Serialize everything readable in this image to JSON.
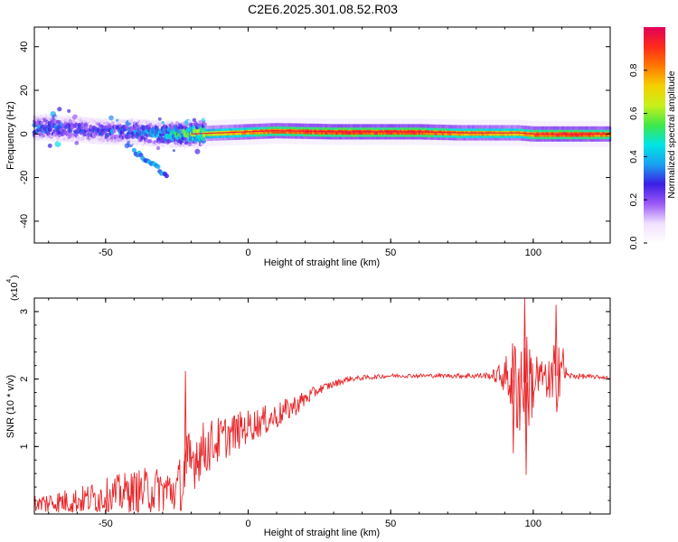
{
  "title": "C2E6.2025.301.08.52.R03",
  "colors": {
    "line": "#e8262a",
    "background": "#ffffff",
    "colormap": [
      "#ffffff",
      "#f0e0ff",
      "#9b59f5",
      "#3b1ee6",
      "#1aa0f0",
      "#00e5e5",
      "#3ee84a",
      "#c8f01a",
      "#f5d000",
      "#ff7a00",
      "#ff2a1a",
      "#e0005a"
    ]
  },
  "chart_data": [
    {
      "type": "heatmap",
      "title": "C2E6.2025.301.08.52.R03",
      "xlabel": "Height of straight line (km)",
      "ylabel": "Frequency (Hz)",
      "xlim": [
        -75,
        127
      ],
      "ylim": [
        -50,
        49
      ],
      "xticks": [
        -50,
        0,
        50,
        100
      ],
      "yticks": [
        40,
        20,
        0,
        -20,
        -40
      ],
      "colorbar": {
        "label": "Normalized spectral amplitude",
        "range": [
          0.0,
          1.0
        ],
        "ticks": [
          0.0,
          0.2,
          0.4,
          0.6,
          0.8
        ]
      },
      "ridge": {
        "description_points": [
          {
            "x": -72,
            "freq": 3,
            "amp": 0.35
          },
          {
            "x": -60,
            "freq": 2,
            "amp": 0.3
          },
          {
            "x": -50,
            "freq": 1,
            "amp": 0.3
          },
          {
            "x": -40,
            "freq": 1,
            "amp": 0.35
          },
          {
            "x": -30,
            "freq": 0,
            "amp": 0.4
          },
          {
            "x": -20,
            "freq": 0,
            "amp": 0.6
          },
          {
            "x": -10,
            "freq": 0.5,
            "amp": 0.75
          },
          {
            "x": 0,
            "freq": 1,
            "amp": 0.85
          },
          {
            "x": 10,
            "freq": 1.5,
            "amp": 0.9
          },
          {
            "x": 30,
            "freq": 1,
            "amp": 0.95
          },
          {
            "x": 60,
            "freq": 1,
            "amp": 0.95
          },
          {
            "x": 75,
            "freq": 0.5,
            "amp": 0.85
          },
          {
            "x": 95,
            "freq": 0.5,
            "amp": 0.8
          },
          {
            "x": 100,
            "freq": 0,
            "amp": 0.9
          },
          {
            "x": 110,
            "freq": 0,
            "amp": 0.95
          },
          {
            "x": 127,
            "freq": 0,
            "amp": 0.9
          }
        ],
        "secondary_branch": [
          {
            "x": -40,
            "freq": -8,
            "amp": 0.3
          },
          {
            "x": -33,
            "freq": -14,
            "amp": 0.35
          },
          {
            "x": -28,
            "freq": -20,
            "amp": 0.3
          }
        ]
      }
    },
    {
      "type": "line",
      "xlabel": "Height of straight line (km)",
      "ylabel": "SNR (10 * v/v)",
      "yscale_label": "(x10",
      "yscale_exp": "4",
      "xlim": [
        -75,
        127
      ],
      "ylim": [
        0,
        3.2
      ],
      "xticks": [
        -50,
        0,
        50,
        100
      ],
      "yticks": [
        1,
        2,
        3
      ],
      "series": [
        {
          "name": "SNR",
          "envelope": [
            {
              "x": -75,
              "mean": 0.15,
              "amp": 0.15
            },
            {
              "x": -60,
              "mean": 0.2,
              "amp": 0.2
            },
            {
              "x": -45,
              "mean": 0.3,
              "amp": 0.3
            },
            {
              "x": -35,
              "mean": 0.35,
              "amp": 0.35
            },
            {
              "x": -25,
              "mean": 0.35,
              "amp": 0.35
            },
            {
              "x": -22,
              "mean": 0.6,
              "amp": 0.6
            },
            {
              "x": -18,
              "mean": 0.9,
              "amp": 0.45
            },
            {
              "x": -10,
              "mean": 1.1,
              "amp": 0.35
            },
            {
              "x": 0,
              "mean": 1.3,
              "amp": 0.25
            },
            {
              "x": 10,
              "mean": 1.45,
              "amp": 0.2
            },
            {
              "x": 18,
              "mean": 1.65,
              "amp": 0.15
            },
            {
              "x": 25,
              "mean": 1.85,
              "amp": 0.07
            },
            {
              "x": 35,
              "mean": 2.0,
              "amp": 0.04
            },
            {
              "x": 50,
              "mean": 2.05,
              "amp": 0.03
            },
            {
              "x": 70,
              "mean": 2.05,
              "amp": 0.03
            },
            {
              "x": 85,
              "mean": 2.05,
              "amp": 0.05
            },
            {
              "x": 90,
              "mean": 2.05,
              "amp": 0.25
            },
            {
              "x": 95,
              "mean": 1.95,
              "amp": 0.9
            },
            {
              "x": 100,
              "mean": 1.95,
              "amp": 0.6
            },
            {
              "x": 104,
              "mean": 2.05,
              "amp": 0.15
            },
            {
              "x": 107,
              "mean": 1.8,
              "amp": 0.7
            },
            {
              "x": 109,
              "mean": 2.3,
              "amp": 0.6
            },
            {
              "x": 112,
              "mean": 2.05,
              "amp": 0.05
            },
            {
              "x": 127,
              "mean": 2.02,
              "amp": 0.02
            }
          ],
          "peaks": [
            {
              "x": -22,
              "y": 2.12
            },
            {
              "x": 97,
              "y": 3.2
            },
            {
              "x": 108,
              "y": 3.1
            },
            {
              "x": 97.5,
              "y": 0.58
            },
            {
              "x": 93,
              "y": 0.9
            }
          ]
        }
      ]
    }
  ]
}
